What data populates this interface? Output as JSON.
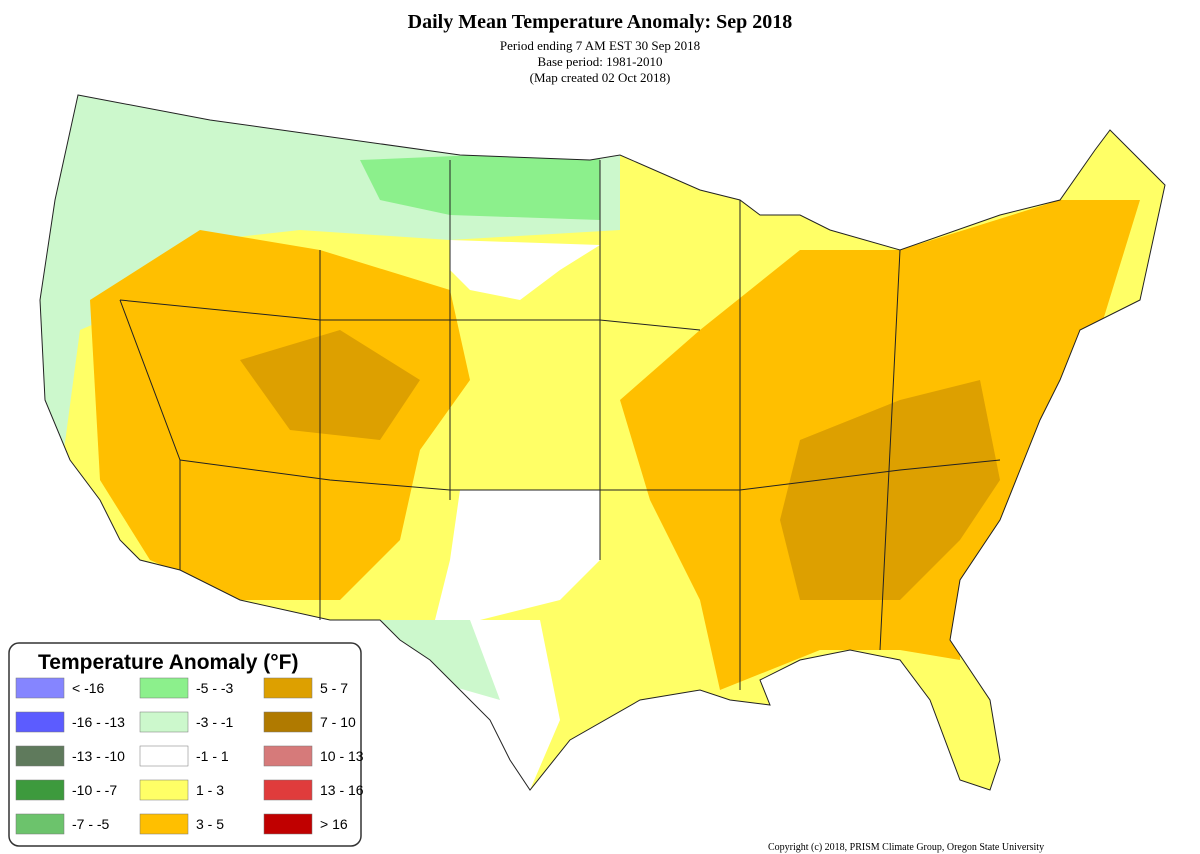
{
  "header": {
    "title": "Daily Mean Temperature Anomaly: Sep 2018",
    "subtitle_lines": [
      "Period ending 7 AM EST 30 Sep 2018",
      "Base period: 1981-2010",
      "(Map created 02 Oct 2018)"
    ]
  },
  "legend": {
    "title": "Temperature Anomaly (°F)",
    "items": [
      {
        "label": "< -16",
        "color": "#8585ff"
      },
      {
        "label": "-16 - -13",
        "color": "#5c5cff"
      },
      {
        "label": "-13 - -10",
        "color": "#5f7a5c"
      },
      {
        "label": "-10 - -7",
        "color": "#3d9a3d"
      },
      {
        "label": "-7 - -5",
        "color": "#6cc36c"
      },
      {
        "label": "-5 - -3",
        "color": "#8cf08c"
      },
      {
        "label": "-3 - -1",
        "color": "#ccf8cc"
      },
      {
        "label": "-1 - 1",
        "color": "#ffffff"
      },
      {
        "label": "1 - 3",
        "color": "#ffff66"
      },
      {
        "label": "3 - 5",
        "color": "#ffbf00"
      },
      {
        "label": "5 - 7",
        "color": "#dda000"
      },
      {
        "label": "7 - 10",
        "color": "#b07a00"
      },
      {
        "label": "10 - 13",
        "color": "#d67a7a"
      },
      {
        "label": "13 - 16",
        "color": "#e03c3c"
      },
      {
        "label": "> 16",
        "color": "#c00000"
      }
    ]
  },
  "copyright": "Copyright (c) 2018, PRISM Climate Group, Oregon State University"
}
